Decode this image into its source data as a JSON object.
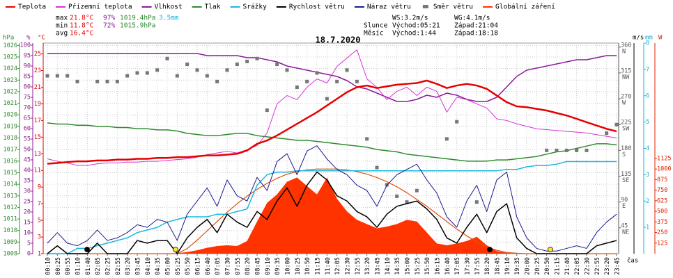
{
  "chart_data": {
    "type": "line",
    "title": "18.7.2020",
    "legend": "top",
    "grid": true,
    "categories": [
      "00:10",
      "00:25",
      "00:55",
      "01:10",
      "01:40",
      "02:05",
      "02:25",
      "02:55",
      "03:20",
      "03:45",
      "04:10",
      "04:35",
      "05:00",
      "05:25",
      "05:50",
      "06:15",
      "06:40",
      "07:05",
      "07:30",
      "07:55",
      "08:20",
      "08:45",
      "09:10",
      "09:35",
      "10:00",
      "10:25",
      "10:50",
      "11:15",
      "11:40",
      "12:05",
      "12:30",
      "12:55",
      "13:20",
      "13:45",
      "14:10",
      "14:35",
      "15:00",
      "15:25",
      "15:50",
      "16:15",
      "16:40",
      "17:05",
      "17:30",
      "17:55",
      "18:20",
      "18:45",
      "19:10",
      "19:35",
      "20:00",
      "20:25",
      "20:50",
      "21:15",
      "21:40",
      "22:05",
      "22:30",
      "22:55",
      "23:20",
      "23:45"
    ],
    "x_label": "čas",
    "stats": {
      "max": {
        "label": "max",
        "temp": "21.8°C",
        "humidity": "97%",
        "pressure": "1019.4hPa",
        "rain": "3.5mm"
      },
      "min": {
        "label": "min",
        "temp": "11.8°C",
        "humidity": "72%",
        "pressure": "1015.9hPa"
      },
      "avg": {
        "label": "avg",
        "temp": "16.4°C"
      },
      "ws": "WS:3.2m/s",
      "wg": "WG:4.1m/s",
      "sun": {
        "label": "Slunce",
        "rise": "Východ:05:21",
        "set": "Západ:21:04"
      },
      "moon": {
        "label": "Měsíc",
        "rise": "Východ:1:44",
        "set": "Západ:18:18"
      }
    },
    "axes": {
      "pressure": {
        "unit": "hPa",
        "color": "#2e8b2e",
        "ylim": [
          1008,
          1026.2
        ],
        "yticks": [
          1008,
          1009,
          1010,
          1011,
          1012,
          1013,
          1014,
          1015,
          1016,
          1017,
          1018,
          1019,
          1020,
          1021,
          1022,
          1023,
          1024,
          1025,
          1026
        ]
      },
      "humidity": {
        "unit": "%",
        "color": "#8b1a8b",
        "ylim": [
          0,
          101
        ],
        "yticks": [
          0,
          5,
          10,
          15,
          20,
          25,
          30,
          35,
          40,
          45,
          50,
          55,
          60,
          65,
          70,
          75,
          80,
          85,
          90,
          95,
          100
        ]
      },
      "temp": {
        "unit": "°C",
        "color": "#dd0000",
        "ylim": [
          1,
          26.3
        ],
        "yticks": [
          1,
          3,
          5,
          7,
          9,
          11,
          13,
          15,
          17,
          19,
          21,
          23,
          25
        ]
      },
      "direction": {
        "color": "#555555",
        "ylim": [
          0,
          367
        ],
        "yticks": [
          {
            "value": 45,
            "label": "45",
            "dir": "NE"
          },
          {
            "value": 90,
            "label": "90",
            "dir": "E"
          },
          {
            "value": 135,
            "label": "135",
            "dir": "SE"
          },
          {
            "value": 180,
            "label": "180",
            "dir": "S"
          },
          {
            "value": 225,
            "label": "225",
            "dir": "SW"
          },
          {
            "value": 270,
            "label": "270",
            "dir": "W"
          },
          {
            "value": 315,
            "label": "315",
            "dir": "NW"
          },
          {
            "value": 360,
            "label": "360",
            "dir": "N"
          }
        ]
      },
      "wind": {
        "unit": "m/s",
        "color": "#000000",
        "ylim": [
          0,
          8
        ]
      },
      "rain": {
        "unit": "mm",
        "color": "#1ab0d8",
        "ylim": [
          0,
          8
        ],
        "yticks": [
          1,
          2,
          3,
          4,
          5,
          6,
          7,
          8
        ]
      },
      "radiation": {
        "unit": "W",
        "color": "#e02000",
        "ylim": [
          0,
          2488
        ],
        "yticks": [
          125,
          250,
          375,
          500,
          625,
          750,
          875,
          1000,
          1125
        ]
      }
    },
    "series": [
      {
        "name": "Teplota",
        "color": "#e60000",
        "axis": "temp",
        "style": "line",
        "width": 2.5,
        "values": [
          11.8,
          11.9,
          12.0,
          12.1,
          12.1,
          12.2,
          12.2,
          12.3,
          12.3,
          12.4,
          12.4,
          12.5,
          12.5,
          12.6,
          12.6,
          12.7,
          12.8,
          12.8,
          12.9,
          13.0,
          13.4,
          14.2,
          14.6,
          15.2,
          15.9,
          16.6,
          17.3,
          18.0,
          18.8,
          19.6,
          20.4,
          21.0,
          21.2,
          20.9,
          21.1,
          21.3,
          21.4,
          21.5,
          21.8,
          21.4,
          20.9,
          21.2,
          21.4,
          21.2,
          20.8,
          20.0,
          19.2,
          18.7,
          18.6,
          18.4,
          18.2,
          17.9,
          17.6,
          17.2,
          16.8,
          16.4,
          16.0,
          15.7
        ]
      },
      {
        "name": "Přízemní teplota",
        "color": "#d633d6",
        "axis": "temp",
        "style": "line",
        "width": 1,
        "values": [
          12.4,
          12.1,
          11.9,
          11.6,
          11.6,
          11.8,
          11.9,
          11.9,
          12.0,
          12.0,
          12.1,
          12.1,
          12.2,
          12.3,
          12.4,
          12.6,
          12.9,
          13.1,
          13.3,
          13.1,
          13.5,
          14.0,
          15.5,
          19.0,
          20.0,
          19.5,
          21.0,
          22.0,
          21.5,
          23.5,
          24.5,
          25.5,
          22.0,
          21.0,
          19.5,
          20.5,
          21.0,
          20.0,
          21.0,
          20.5,
          18.0,
          19.8,
          19.5,
          19.0,
          18.5,
          17.2,
          17.0,
          16.6,
          16.3,
          16.0,
          15.9,
          15.8,
          15.7,
          15.6,
          15.5,
          15.3,
          15.1,
          14.9
        ]
      },
      {
        "name": "Vlhkost",
        "color": "#8b1a9b",
        "axis": "humidity",
        "style": "line",
        "width": 1.5,
        "values": [
          96,
          96,
          96,
          96,
          96,
          96,
          96,
          96,
          96,
          96,
          96,
          96,
          96,
          96,
          96,
          96,
          95,
          95,
          95,
          95,
          94,
          94,
          93,
          92,
          90,
          89,
          88,
          87,
          86,
          85,
          83,
          80,
          79,
          77,
          75,
          73,
          73,
          74,
          76,
          75,
          77,
          76,
          74,
          73,
          73,
          75,
          80,
          85,
          88,
          89,
          90,
          91,
          92,
          93,
          93,
          94,
          95,
          95
        ]
      },
      {
        "name": "Tlak",
        "color": "#2e8b2e",
        "axis": "pressure",
        "style": "line",
        "width": 1.5,
        "values": [
          1019.3,
          1019.2,
          1019.2,
          1019.1,
          1019.1,
          1019.0,
          1019.0,
          1018.9,
          1018.9,
          1018.8,
          1018.8,
          1018.7,
          1018.7,
          1018.6,
          1018.4,
          1018.3,
          1018.2,
          1018.2,
          1018.3,
          1018.4,
          1018.4,
          1018.2,
          1018.1,
          1018.0,
          1017.9,
          1017.8,
          1017.8,
          1017.7,
          1017.6,
          1017.5,
          1017.4,
          1017.3,
          1017.2,
          1017.0,
          1016.9,
          1016.8,
          1016.6,
          1016.5,
          1016.4,
          1016.3,
          1016.2,
          1016.1,
          1016.0,
          1016.0,
          1016.0,
          1016.1,
          1016.1,
          1016.2,
          1016.3,
          1016.4,
          1016.6,
          1016.8,
          1016.9,
          1017.1,
          1017.3,
          1017.5,
          1017.5,
          1017.4
        ]
      },
      {
        "name": "Srážky",
        "color": "#1ab8e0",
        "axis": "rain",
        "style": "line",
        "width": 1.5,
        "values": [
          0,
          0,
          0,
          0.2,
          0.2,
          0.3,
          0.4,
          0.5,
          0.6,
          0.8,
          0.9,
          1.0,
          1.2,
          1.3,
          1.4,
          1.4,
          1.4,
          1.5,
          1.5,
          1.6,
          1.7,
          2.6,
          3.0,
          3.1,
          3.1,
          3.15,
          3.15,
          3.15,
          3.15,
          3.15,
          3.15,
          3.15,
          3.15,
          3.15,
          3.15,
          3.15,
          3.15,
          3.15,
          3.15,
          3.15,
          3.15,
          3.15,
          3.15,
          3.15,
          3.15,
          3.15,
          3.2,
          3.2,
          3.3,
          3.35,
          3.35,
          3.4,
          3.5,
          3.5,
          3.5,
          3.5,
          3.5,
          3.5
        ]
      },
      {
        "name": "Rychlost větru",
        "color": "#000000",
        "axis": "wind",
        "style": "line",
        "width": 1.5,
        "values": [
          0,
          0.3,
          0,
          0,
          0,
          0.4,
          0,
          0,
          0,
          0.5,
          0.4,
          0.5,
          0.5,
          0,
          0.6,
          1.0,
          1.3,
          0.8,
          1.5,
          1.2,
          1.0,
          1.6,
          1.3,
          2.0,
          2.5,
          1.8,
          2.6,
          3.1,
          2.8,
          2.2,
          2.0,
          1.6,
          1.4,
          1.0,
          1.5,
          1.8,
          1.9,
          2.0,
          1.7,
          1.3,
          0.6,
          0.4,
          1.0,
          1.5,
          0.8,
          1.6,
          1.9,
          0.6,
          0.2,
          0,
          0,
          0,
          0,
          0,
          0,
          0.3,
          0.4,
          0.5
        ]
      },
      {
        "name": "Náraz větru",
        "color": "#1a1a8c",
        "axis": "wind",
        "style": "line",
        "width": 1,
        "values": [
          0.4,
          0.8,
          0.4,
          0.3,
          0.5,
          0.9,
          0.5,
          0.6,
          0.8,
          1.1,
          1.0,
          1.3,
          1.2,
          0.5,
          1.5,
          2.0,
          2.5,
          1.8,
          2.8,
          2.2,
          2.0,
          2.9,
          2.4,
          3.5,
          3.8,
          3.0,
          3.9,
          4.1,
          3.6,
          3.2,
          3.0,
          2.6,
          2.4,
          1.8,
          2.6,
          3.0,
          3.2,
          3.4,
          2.8,
          2.3,
          1.4,
          1.0,
          2.0,
          2.6,
          1.6,
          2.8,
          3.1,
          1.4,
          0.6,
          0.2,
          0.1,
          0.1,
          0.2,
          0.3,
          0.2,
          0.8,
          1.2,
          1.5
        ]
      },
      {
        "name": "Směr větru",
        "color": "#777777",
        "axis": "direction",
        "style": "points",
        "values": [
          310,
          310,
          310,
          300,
          null,
          300,
          300,
          300,
          310,
          315,
          315,
          320,
          340,
          310,
          330,
          320,
          310,
          300,
          320,
          330,
          335,
          340,
          250,
          330,
          320,
          290,
          300,
          315,
          270,
          300,
          320,
          300,
          200,
          150,
          120,
          100,
          90,
          110,
          null,
          null,
          200,
          230,
          null,
          90,
          null,
          null,
          null,
          null,
          null,
          null,
          180,
          180,
          180,
          180,
          180,
          null,
          210,
          225
        ]
      },
      {
        "name": "Globální záření",
        "color": "#ff3300",
        "axis": "radiation",
        "style": "area",
        "values": [
          0,
          0,
          0,
          0,
          0,
          0,
          0,
          0,
          0,
          0,
          0,
          0,
          0,
          5,
          20,
          40,
          70,
          90,
          100,
          90,
          150,
          380,
          600,
          700,
          850,
          900,
          800,
          700,
          900,
          650,
          500,
          400,
          350,
          300,
          320,
          350,
          400,
          380,
          250,
          120,
          100,
          120,
          150,
          200,
          100,
          30,
          10,
          0,
          0,
          0,
          0,
          0,
          0,
          0,
          0,
          0,
          0,
          0
        ]
      }
    ],
    "reference_curve": {
      "color": "#e05010",
      "axis": "radiation",
      "values": [
        0,
        0,
        0,
        0,
        0,
        0,
        0,
        0,
        0,
        0,
        0,
        0,
        0,
        0,
        60,
        160,
        270,
        380,
        490,
        590,
        680,
        760,
        830,
        890,
        940,
        970,
        990,
        1000,
        1000,
        1000,
        990,
        970,
        940,
        900,
        850,
        790,
        720,
        640,
        560,
        470,
        380,
        290,
        210,
        140,
        80,
        40,
        15,
        5,
        0,
        0,
        0,
        0,
        0,
        0,
        0,
        0,
        0,
        0
      ]
    }
  }
}
